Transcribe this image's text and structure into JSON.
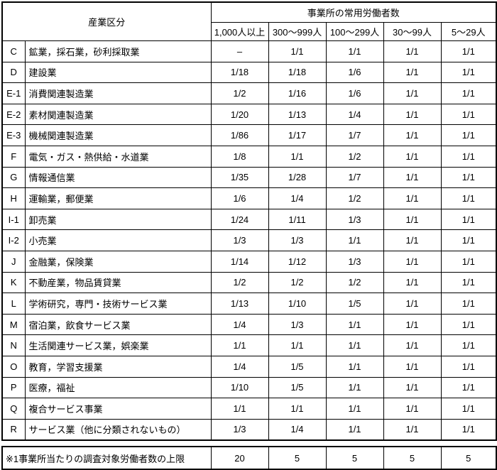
{
  "table": {
    "header": {
      "industry": "産業区分",
      "workers_group": "事業所の常用労働者数"
    },
    "size_headers": [
      "1,000人以上",
      "300～999人",
      "100～299人",
      "30～99人",
      "5～29人"
    ],
    "rows": [
      {
        "code": "C",
        "name": "鉱業，採石業，砂利採取業",
        "values": [
          "–",
          "1/1",
          "1/1",
          "1/1",
          "1/1"
        ]
      },
      {
        "code": "D",
        "name": "建設業",
        "values": [
          "1/18",
          "1/18",
          "1/6",
          "1/1",
          "1/1"
        ]
      },
      {
        "code": "E-1",
        "name": "消費関連製造業",
        "values": [
          "1/2",
          "1/16",
          "1/6",
          "1/1",
          "1/1"
        ]
      },
      {
        "code": "E-2",
        "name": "素材関連製造業",
        "values": [
          "1/20",
          "1/13",
          "1/4",
          "1/1",
          "1/1"
        ]
      },
      {
        "code": "E-3",
        "name": "機械関連製造業",
        "values": [
          "1/86",
          "1/17",
          "1/7",
          "1/1",
          "1/1"
        ]
      },
      {
        "code": "F",
        "name": "電気・ガス・熱供給・水道業",
        "values": [
          "1/8",
          "1/1",
          "1/2",
          "1/1",
          "1/1"
        ]
      },
      {
        "code": "G",
        "name": "情報通信業",
        "values": [
          "1/35",
          "1/28",
          "1/7",
          "1/1",
          "1/1"
        ]
      },
      {
        "code": "H",
        "name": "運輸業，郵便業",
        "values": [
          "1/6",
          "1/4",
          "1/2",
          "1/1",
          "1/1"
        ]
      },
      {
        "code": "I-1",
        "name": "卸売業",
        "values": [
          "1/24",
          "1/11",
          "1/3",
          "1/1",
          "1/1"
        ]
      },
      {
        "code": "I-2",
        "name": "小売業",
        "values": [
          "1/3",
          "1/3",
          "1/1",
          "1/1",
          "1/1"
        ]
      },
      {
        "code": "J",
        "name": "金融業，保険業",
        "values": [
          "1/14",
          "1/12",
          "1/3",
          "1/1",
          "1/1"
        ]
      },
      {
        "code": "K",
        "name": "不動産業，物品賃貸業",
        "values": [
          "1/2",
          "1/2",
          "1/2",
          "1/1",
          "1/1"
        ]
      },
      {
        "code": "L",
        "name": "学術研究，専門・技術サービス業",
        "values": [
          "1/13",
          "1/10",
          "1/5",
          "1/1",
          "1/1"
        ]
      },
      {
        "code": "M",
        "name": "宿泊業，飲食サービス業",
        "values": [
          "1/4",
          "1/3",
          "1/1",
          "1/1",
          "1/1"
        ]
      },
      {
        "code": "N",
        "name": "生活関連サービス業，娯楽業",
        "values": [
          "1/1",
          "1/1",
          "1/1",
          "1/1",
          "1/1"
        ]
      },
      {
        "code": "O",
        "name": "教育，学習支援業",
        "values": [
          "1/4",
          "1/5",
          "1/1",
          "1/1",
          "1/1"
        ]
      },
      {
        "code": "P",
        "name": "医療，福祉",
        "values": [
          "1/10",
          "1/5",
          "1/1",
          "1/1",
          "1/1"
        ]
      },
      {
        "code": "Q",
        "name": "複合サービス事業",
        "values": [
          "1/1",
          "1/1",
          "1/1",
          "1/1",
          "1/1"
        ]
      },
      {
        "code": "R",
        "name": "サービス業（他に分類されないもの）",
        "values": [
          "1/3",
          "1/4",
          "1/1",
          "1/1",
          "1/1"
        ]
      }
    ]
  },
  "footer": {
    "label": "※1事業所当たりの調査対象労働者数の上限",
    "values": [
      "20",
      "5",
      "5",
      "5",
      "5"
    ]
  }
}
